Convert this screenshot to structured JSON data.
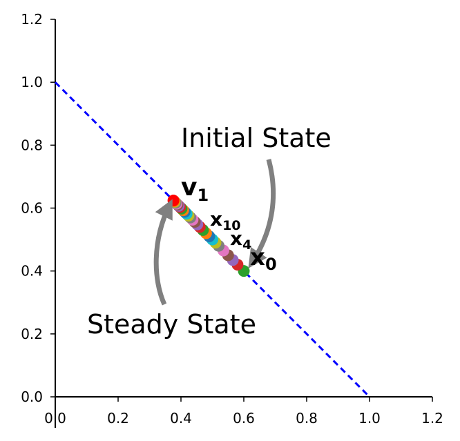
{
  "chart_data": {
    "type": "scatter",
    "xlim": [
      0,
      1.2
    ],
    "ylim": [
      0,
      1.2
    ],
    "grid": false,
    "x_ticks": [
      "0.0",
      "0.2",
      "0.4",
      "0.6",
      "0.8",
      "1.0",
      "1.2"
    ],
    "y_ticks": [
      "0.0",
      "0.2",
      "0.4",
      "0.6",
      "0.8",
      "1.0",
      "1.2"
    ],
    "line": {
      "x": [
        0,
        1
      ],
      "y": [
        1,
        0
      ],
      "color": "#0000ff",
      "style": "dashed"
    },
    "points": [
      {
        "x": 0.6,
        "y": 0.4,
        "color": "#2ca02c"
      },
      {
        "x": 0.58,
        "y": 0.42,
        "color": "#d62728"
      },
      {
        "x": 0.565,
        "y": 0.435,
        "color": "#9467bd"
      },
      {
        "x": 0.55,
        "y": 0.45,
        "color": "#8c564b"
      },
      {
        "x": 0.535,
        "y": 0.465,
        "color": "#e377c2"
      },
      {
        "x": 0.52,
        "y": 0.48,
        "color": "#7f7f7f"
      },
      {
        "x": 0.51,
        "y": 0.49,
        "color": "#bcbd22"
      },
      {
        "x": 0.5,
        "y": 0.5,
        "color": "#17becf"
      },
      {
        "x": 0.49,
        "y": 0.51,
        "color": "#1f77b4"
      },
      {
        "x": 0.48,
        "y": 0.52,
        "color": "#ff7f0e"
      },
      {
        "x": 0.47,
        "y": 0.53,
        "color": "#2ca02c"
      },
      {
        "x": 0.46,
        "y": 0.54,
        "color": "#d62728"
      },
      {
        "x": 0.452,
        "y": 0.548,
        "color": "#9467bd"
      },
      {
        "x": 0.444,
        "y": 0.556,
        "color": "#8c564b"
      },
      {
        "x": 0.437,
        "y": 0.563,
        "color": "#e377c2"
      },
      {
        "x": 0.43,
        "y": 0.57,
        "color": "#7f7f7f"
      },
      {
        "x": 0.424,
        "y": 0.576,
        "color": "#bcbd22"
      },
      {
        "x": 0.418,
        "y": 0.582,
        "color": "#17becf"
      },
      {
        "x": 0.412,
        "y": 0.588,
        "color": "#1f77b4"
      },
      {
        "x": 0.407,
        "y": 0.593,
        "color": "#ff7f0e"
      },
      {
        "x": 0.402,
        "y": 0.598,
        "color": "#2ca02c"
      },
      {
        "x": 0.397,
        "y": 0.603,
        "color": "#d62728"
      },
      {
        "x": 0.393,
        "y": 0.607,
        "color": "#9467bd"
      },
      {
        "x": 0.389,
        "y": 0.611,
        "color": "#8c564b"
      },
      {
        "x": 0.386,
        "y": 0.614,
        "color": "#e377c2"
      },
      {
        "x": 0.383,
        "y": 0.617,
        "color": "#7f7f7f"
      },
      {
        "x": 0.38,
        "y": 0.62,
        "color": "#bcbd22"
      },
      {
        "x": 0.378,
        "y": 0.622,
        "color": "#ff7f0e"
      },
      {
        "x": 0.376,
        "y": 0.624,
        "color": "#ff0000"
      }
    ],
    "labels": {
      "v1": {
        "base": "v",
        "sub": "1"
      },
      "x10": {
        "base": "x",
        "sub": "10"
      },
      "x4": {
        "base": "x",
        "sub": "4"
      },
      "x0": {
        "base": "x",
        "sub": "0"
      }
    },
    "annotations": {
      "initial_state": "Initial State",
      "steady_state": "Steady State"
    },
    "arrow_color": "#808080"
  }
}
